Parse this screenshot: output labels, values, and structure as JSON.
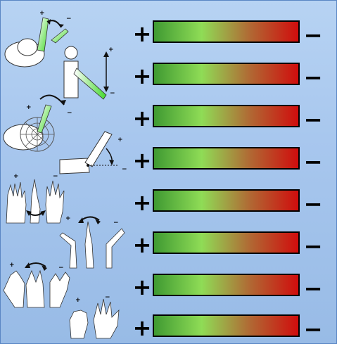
{
  "rows": [
    {
      "plus": "+",
      "minus": "−",
      "illustration": "shoulder-flexion-illustration",
      "level": null
    },
    {
      "plus": "+",
      "minus": "−",
      "illustration": "arm-raise-illustration",
      "level": null
    },
    {
      "plus": "+",
      "minus": "−",
      "illustration": "shoulder-rotation-illustration",
      "level": null
    },
    {
      "plus": "+",
      "minus": "−",
      "illustration": "elbow-flexion-illustration",
      "level": null
    },
    {
      "plus": "+",
      "minus": "−",
      "illustration": "forearm-rotation-illustration",
      "level": null
    },
    {
      "plus": "+",
      "minus": "−",
      "illustration": "wrist-deviation-illustration",
      "level": null
    },
    {
      "plus": "+",
      "minus": "−",
      "illustration": "wrist-flexion-illustration",
      "level": null
    },
    {
      "plus": "+",
      "minus": "−",
      "illustration": "hand-grasp-illustration",
      "level": null
    }
  ],
  "colors": {
    "background": "#a8c7ee",
    "gradient_start": "#3f9a32",
    "gradient_mid_green": "#8fdc56",
    "gradient_mid_brown": "#b06a34",
    "gradient_end": "#d00d0d"
  },
  "illustration_labels": {
    "plus": "+",
    "minus": "−"
  }
}
